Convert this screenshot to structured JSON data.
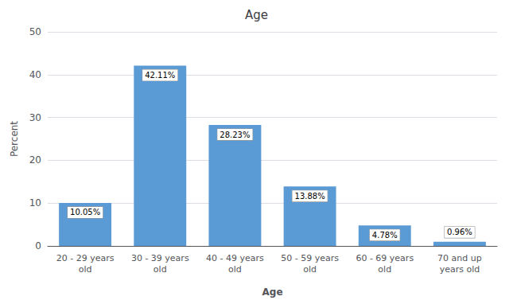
{
  "chart_data": {
    "type": "bar",
    "title": "Age",
    "xlabel": "Age",
    "ylabel": "Percent",
    "categories": [
      "20 - 29 years\nold",
      "30 - 39 years\nold",
      "40 - 49 years\nold",
      "50 - 59 years\nold",
      "60 - 69 years\nold",
      "70 and up\nyears old"
    ],
    "values": [
      10.05,
      42.11,
      28.23,
      13.88,
      4.78,
      0.96
    ],
    "value_labels": [
      "10.05%",
      "42.11%",
      "28.23%",
      "13.88%",
      "4.78%",
      "0.96%"
    ],
    "data_labels": true,
    "color": "#5b9bd5",
    "ylim": [
      0,
      50
    ],
    "yticks": [
      0,
      10,
      20,
      30,
      40,
      50
    ],
    "grid": true
  }
}
